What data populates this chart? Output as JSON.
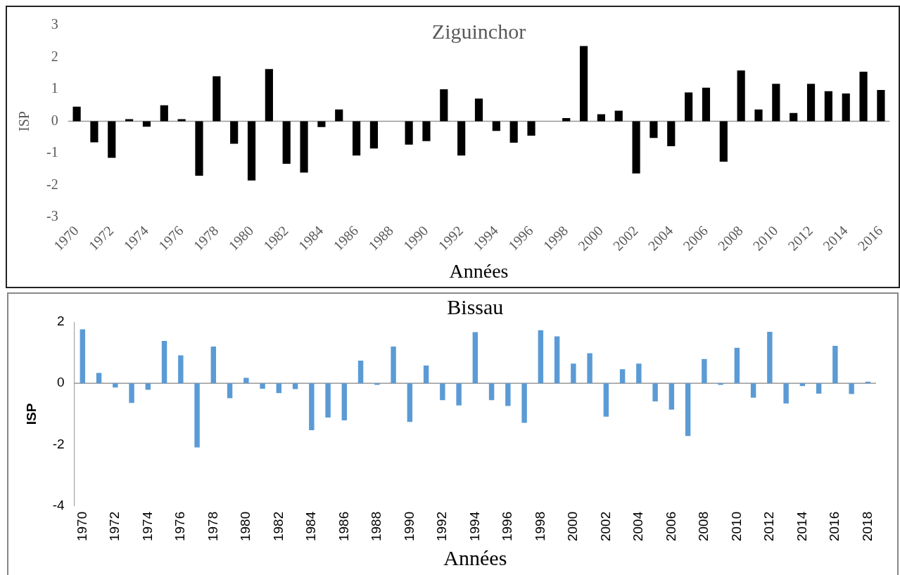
{
  "chart_data": [
    {
      "type": "bar",
      "title": "Ziguinchor",
      "xlabel": "Années",
      "ylabel": "ISP",
      "color": "#000000",
      "grid": false,
      "legend": false,
      "categories": [
        "1970",
        null,
        "1972",
        null,
        "1974",
        null,
        "1976",
        null,
        "1978",
        null,
        "1980",
        null,
        "1982",
        null,
        "1984",
        null,
        "1986",
        null,
        "1988",
        null,
        "1990",
        null,
        "1992",
        null,
        "1994",
        null,
        "1996",
        null,
        "1998",
        null,
        "2000",
        null,
        "2002",
        null,
        "2004",
        null,
        "2006",
        null,
        "2008",
        null,
        "2010",
        null,
        "2012",
        null,
        "2014",
        null,
        "2016"
      ],
      "values": [
        0.46,
        -0.66,
        -1.14,
        0.07,
        -0.17,
        0.5,
        0.07,
        -1.7,
        1.41,
        -0.7,
        -1.85,
        1.63,
        -1.33,
        -1.6,
        -0.18,
        0.37,
        -1.07,
        -0.85,
        null,
        -0.73,
        -0.62,
        1.0,
        -1.07,
        0.71,
        -0.3,
        -0.67,
        -0.45,
        null,
        0.1,
        2.35,
        0.22,
        0.33,
        -1.63,
        -0.52,
        -0.78,
        0.9,
        1.05,
        -1.26,
        1.59,
        0.37,
        1.17,
        0.26,
        1.17,
        0.94,
        0.87,
        1.55,
        0.98
      ],
      "ylim": [
        -3,
        3
      ],
      "yticks": [
        -3,
        -2,
        -1,
        0,
        1,
        2,
        3
      ],
      "ref_lines": [
        {
          "axis": "y",
          "value": 0,
          "color": "#999999"
        }
      ]
    },
    {
      "type": "bar",
      "title": "Bissau",
      "xlabel": "Années",
      "ylabel": "ISP",
      "color": "#5b9bd5",
      "grid": false,
      "legend": false,
      "categories": [
        "1970",
        null,
        "1972",
        null,
        "1974",
        null,
        "1976",
        null,
        "1978",
        null,
        "1980",
        null,
        "1982",
        null,
        "1984",
        null,
        "1986",
        null,
        "1988",
        null,
        "1990",
        null,
        "1992",
        null,
        "1994",
        null,
        "1996",
        null,
        "1998",
        null,
        "2000",
        null,
        "2002",
        null,
        "2004",
        null,
        "2006",
        null,
        "2008",
        null,
        "2010",
        null,
        "2012",
        null,
        "2014",
        null,
        "2016",
        null,
        "2018"
      ],
      "values": [
        1.76,
        0.34,
        -0.14,
        -0.64,
        -0.21,
        1.38,
        0.91,
        -2.09,
        1.2,
        -0.49,
        0.18,
        -0.18,
        -0.32,
        -0.19,
        -1.53,
        -1.12,
        -1.21,
        0.74,
        -0.05,
        1.2,
        -1.26,
        0.58,
        -0.55,
        -0.72,
        1.67,
        -0.55,
        -0.74,
        -1.29,
        1.73,
        1.53,
        0.64,
        0.98,
        -1.09,
        0.46,
        0.64,
        -0.59,
        -0.86,
        -1.72,
        0.79,
        -0.05,
        1.16,
        -0.47,
        1.68,
        -0.66,
        -0.09,
        -0.34,
        1.22,
        -0.35,
        0.05
      ],
      "ylim": [
        -4,
        2
      ],
      "yticks": [
        -4,
        -2,
        0,
        2
      ],
      "ref_lines": [
        {
          "axis": "y",
          "value": 0,
          "color": "#999999"
        }
      ]
    }
  ]
}
